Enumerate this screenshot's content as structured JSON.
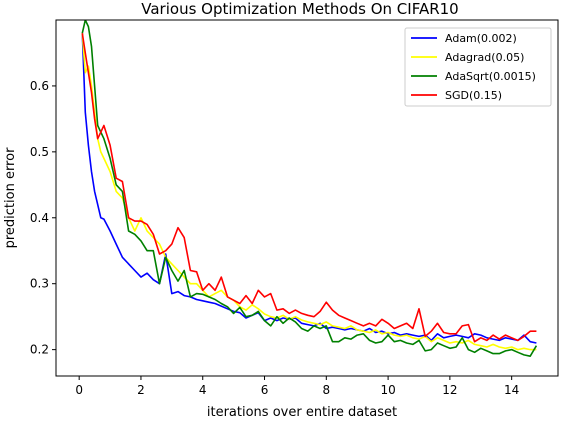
{
  "chart_data": {
    "type": "line",
    "title": "Various Optimization Methods On CIFAR10",
    "xlabel": "iterations over entire dataset",
    "ylabel": "prediction error",
    "xlim": [
      -0.75,
      15.5
    ],
    "ylim": [
      0.16,
      0.7
    ],
    "xticks": [
      0,
      2,
      4,
      6,
      8,
      10,
      12,
      14
    ],
    "yticks": [
      0.2,
      0.3,
      0.4,
      0.5,
      0.6
    ],
    "ytick_labels": [
      "0.2",
      "0.3",
      "0.4",
      "0.5",
      "0.6"
    ],
    "grid": false,
    "legend_position": "top-right",
    "series": [
      {
        "name": "Adam(0.002)",
        "color": "#0000ff",
        "x": [
          0.1,
          0.2,
          0.3,
          0.4,
          0.5,
          0.6,
          0.7,
          0.8,
          1.0,
          1.2,
          1.4,
          1.6,
          1.8,
          2.0,
          2.2,
          2.4,
          2.6,
          2.8,
          3.0,
          3.2,
          3.4,
          3.6,
          3.8,
          4.0,
          4.2,
          4.4,
          4.6,
          4.8,
          5.0,
          5.2,
          5.4,
          5.6,
          5.8,
          6.0,
          6.2,
          6.4,
          6.6,
          6.8,
          7.0,
          7.2,
          7.4,
          7.6,
          7.8,
          8.0,
          8.2,
          8.4,
          8.6,
          8.8,
          9.0,
          9.2,
          9.4,
          9.6,
          9.8,
          10.0,
          10.2,
          10.4,
          10.6,
          10.8,
          11.0,
          11.2,
          11.4,
          11.6,
          11.8,
          12.0,
          12.2,
          12.4,
          12.6,
          12.8,
          13.0,
          13.2,
          13.4,
          13.6,
          13.8,
          14.0,
          14.2,
          14.4,
          14.6,
          14.8
        ],
        "y": [
          0.68,
          0.56,
          0.51,
          0.47,
          0.44,
          0.42,
          0.4,
          0.398,
          0.38,
          0.36,
          0.34,
          0.33,
          0.32,
          0.31,
          0.316,
          0.306,
          0.3,
          0.345,
          0.285,
          0.288,
          0.282,
          0.28,
          0.276,
          0.274,
          0.272,
          0.27,
          0.266,
          0.262,
          0.258,
          0.256,
          0.248,
          0.252,
          0.256,
          0.244,
          0.248,
          0.244,
          0.248,
          0.246,
          0.248,
          0.24,
          0.238,
          0.236,
          0.24,
          0.232,
          0.234,
          0.232,
          0.23,
          0.232,
          0.23,
          0.228,
          0.232,
          0.226,
          0.228,
          0.224,
          0.226,
          0.222,
          0.224,
          0.222,
          0.22,
          0.222,
          0.214,
          0.224,
          0.218,
          0.22,
          0.222,
          0.22,
          0.218,
          0.224,
          0.222,
          0.218,
          0.216,
          0.214,
          0.218,
          0.216,
          0.214,
          0.222,
          0.212,
          0.21
        ]
      },
      {
        "name": "Adagrad(0.05)",
        "color": "#ffff00",
        "x": [
          0.1,
          0.2,
          0.3,
          0.4,
          0.5,
          0.6,
          0.7,
          0.8,
          1.0,
          1.2,
          1.4,
          1.6,
          1.8,
          2.0,
          2.2,
          2.4,
          2.6,
          2.8,
          3.0,
          3.2,
          3.4,
          3.6,
          3.8,
          4.0,
          4.2,
          4.4,
          4.6,
          4.8,
          5.0,
          5.2,
          5.4,
          5.6,
          5.8,
          6.0,
          6.2,
          6.4,
          6.6,
          6.8,
          7.0,
          7.2,
          7.4,
          7.6,
          7.8,
          8.0,
          8.2,
          8.4,
          8.6,
          8.8,
          9.0,
          9.2,
          9.4,
          9.6,
          9.8,
          10.0,
          10.2,
          10.4,
          10.6,
          10.8,
          11.0,
          11.2,
          11.4,
          11.6,
          11.8,
          12.0,
          12.2,
          12.4,
          12.6,
          12.8,
          13.0,
          13.2,
          13.4,
          13.6,
          13.8,
          14.0,
          14.2,
          14.4,
          14.6,
          14.8
        ],
        "y": [
          0.68,
          0.62,
          0.63,
          0.6,
          0.56,
          0.52,
          0.5,
          0.49,
          0.47,
          0.44,
          0.43,
          0.4,
          0.38,
          0.4,
          0.38,
          0.37,
          0.36,
          0.34,
          0.33,
          0.32,
          0.31,
          0.3,
          0.3,
          0.29,
          0.28,
          0.285,
          0.29,
          0.28,
          0.275,
          0.265,
          0.26,
          0.268,
          0.262,
          0.254,
          0.25,
          0.248,
          0.252,
          0.246,
          0.25,
          0.245,
          0.242,
          0.24,
          0.238,
          0.242,
          0.236,
          0.234,
          0.232,
          0.236,
          0.23,
          0.228,
          0.226,
          0.23,
          0.224,
          0.226,
          0.222,
          0.22,
          0.222,
          0.218,
          0.216,
          0.22,
          0.212,
          0.218,
          0.214,
          0.21,
          0.212,
          0.21,
          0.214,
          0.208,
          0.206,
          0.204,
          0.208,
          0.204,
          0.202,
          0.204,
          0.2,
          0.202,
          0.2,
          0.2
        ]
      },
      {
        "name": "AdaSqrt(0.0015)",
        "color": "#008000",
        "x": [
          0.1,
          0.2,
          0.3,
          0.4,
          0.5,
          0.6,
          0.7,
          0.8,
          1.0,
          1.2,
          1.4,
          1.6,
          1.8,
          2.0,
          2.2,
          2.4,
          2.6,
          2.8,
          3.0,
          3.2,
          3.4,
          3.6,
          3.8,
          4.0,
          4.2,
          4.4,
          4.6,
          4.8,
          5.0,
          5.2,
          5.4,
          5.6,
          5.8,
          6.0,
          6.2,
          6.4,
          6.6,
          6.8,
          7.0,
          7.2,
          7.4,
          7.6,
          7.8,
          8.0,
          8.2,
          8.4,
          8.6,
          8.8,
          9.0,
          9.2,
          9.4,
          9.6,
          9.8,
          10.0,
          10.2,
          10.4,
          10.6,
          10.8,
          11.0,
          11.2,
          11.4,
          11.6,
          11.8,
          12.0,
          12.2,
          12.4,
          12.6,
          12.8,
          13.0,
          13.2,
          13.4,
          13.6,
          13.8,
          14.0,
          14.2,
          14.4,
          14.6,
          14.8
        ],
        "y": [
          0.68,
          0.7,
          0.69,
          0.66,
          0.6,
          0.54,
          0.53,
          0.52,
          0.49,
          0.45,
          0.44,
          0.38,
          0.375,
          0.365,
          0.35,
          0.35,
          0.3,
          0.34,
          0.32,
          0.304,
          0.32,
          0.28,
          0.285,
          0.284,
          0.28,
          0.276,
          0.27,
          0.265,
          0.255,
          0.264,
          0.25,
          0.252,
          0.258,
          0.244,
          0.236,
          0.25,
          0.24,
          0.248,
          0.242,
          0.232,
          0.228,
          0.236,
          0.232,
          0.236,
          0.212,
          0.212,
          0.218,
          0.216,
          0.222,
          0.224,
          0.214,
          0.21,
          0.212,
          0.222,
          0.212,
          0.214,
          0.21,
          0.208,
          0.214,
          0.198,
          0.2,
          0.21,
          0.206,
          0.202,
          0.204,
          0.218,
          0.2,
          0.196,
          0.202,
          0.198,
          0.194,
          0.194,
          0.198,
          0.2,
          0.196,
          0.192,
          0.19,
          0.206
        ]
      },
      {
        "name": "SGD(0.15)",
        "color": "#ff0000",
        "x": [
          0.1,
          0.2,
          0.3,
          0.4,
          0.5,
          0.6,
          0.7,
          0.8,
          1.0,
          1.2,
          1.4,
          1.6,
          1.8,
          2.0,
          2.2,
          2.4,
          2.6,
          2.8,
          3.0,
          3.2,
          3.4,
          3.6,
          3.8,
          4.0,
          4.2,
          4.4,
          4.6,
          4.8,
          5.0,
          5.2,
          5.4,
          5.6,
          5.8,
          6.0,
          6.2,
          6.4,
          6.6,
          6.8,
          7.0,
          7.2,
          7.4,
          7.6,
          7.8,
          8.0,
          8.2,
          8.4,
          8.6,
          8.8,
          9.0,
          9.2,
          9.4,
          9.6,
          9.8,
          10.0,
          10.2,
          10.4,
          10.6,
          10.8,
          11.0,
          11.2,
          11.4,
          11.6,
          11.8,
          12.0,
          12.2,
          12.4,
          12.6,
          12.8,
          13.0,
          13.2,
          13.4,
          13.6,
          13.8,
          14.0,
          14.2,
          14.4,
          14.6,
          14.8
        ],
        "y": [
          0.68,
          0.65,
          0.62,
          0.59,
          0.55,
          0.52,
          0.53,
          0.54,
          0.51,
          0.46,
          0.455,
          0.4,
          0.395,
          0.395,
          0.39,
          0.375,
          0.345,
          0.35,
          0.36,
          0.385,
          0.37,
          0.32,
          0.318,
          0.29,
          0.3,
          0.29,
          0.31,
          0.28,
          0.275,
          0.27,
          0.282,
          0.27,
          0.29,
          0.28,
          0.285,
          0.26,
          0.262,
          0.255,
          0.26,
          0.255,
          0.252,
          0.25,
          0.258,
          0.272,
          0.26,
          0.252,
          0.248,
          0.244,
          0.24,
          0.236,
          0.24,
          0.236,
          0.246,
          0.24,
          0.232,
          0.236,
          0.24,
          0.232,
          0.262,
          0.22,
          0.228,
          0.24,
          0.226,
          0.224,
          0.224,
          0.236,
          0.238,
          0.212,
          0.218,
          0.214,
          0.222,
          0.216,
          0.222,
          0.218,
          0.214,
          0.22,
          0.228,
          0.228
        ]
      }
    ]
  }
}
